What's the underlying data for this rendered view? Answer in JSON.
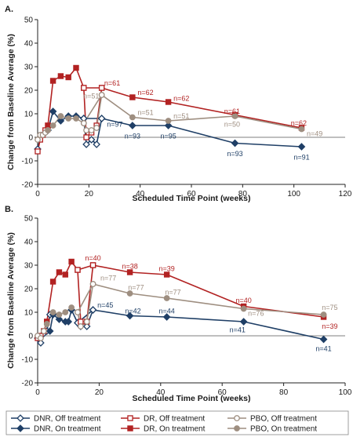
{
  "chart_data": [
    {
      "type": "line",
      "panel_label": "A.",
      "xlabel": "Scheduled Time Point (weeks)",
      "ylabel": "Change from Baseline Average (%)",
      "xlim": [
        0,
        120
      ],
      "ylim": [
        -20,
        50
      ],
      "x_ticks": [
        0,
        20,
        40,
        60,
        80,
        100,
        120
      ],
      "y_ticks": [
        -20,
        -10,
        0,
        10,
        20,
        30,
        40,
        50
      ],
      "series": [
        {
          "key": "dnr_off",
          "color": "#1f3f66",
          "marker": "diamond",
          "filled": false,
          "dashed": false,
          "x": [
            0,
            1,
            2,
            3,
            4
          ],
          "y": [
            -5,
            0,
            1,
            2,
            3
          ]
        },
        {
          "key": "dnr_on",
          "color": "#1f3f66",
          "marker": "diamond",
          "filled": true,
          "dashed": false,
          "x": [
            4,
            6,
            9,
            12,
            15,
            18,
            25,
            37,
            51,
            77,
            103
          ],
          "y": [
            3,
            11,
            7,
            9,
            9,
            8,
            8,
            5,
            5,
            -2.5,
            -4
          ]
        },
        {
          "key": "dnr_off_after",
          "color": "#1f3f66",
          "marker": "diamond",
          "filled": false,
          "dashed": false,
          "x": [
            18,
            19,
            21,
            23,
            25
          ],
          "y": [
            8,
            -3,
            -1,
            -3,
            8
          ]
        },
        {
          "key": "dr_off",
          "color": "#b22222",
          "marker": "square",
          "filled": false,
          "dashed": false,
          "x": [
            0,
            1,
            2,
            3,
            4
          ],
          "y": [
            -6,
            -1,
            1,
            3,
            5
          ]
        },
        {
          "key": "dr_on",
          "color": "#b22222",
          "marker": "square",
          "filled": true,
          "dashed": false,
          "x": [
            4,
            6,
            9,
            12,
            15,
            18,
            25,
            37,
            51,
            77,
            103
          ],
          "y": [
            5,
            24,
            26,
            25.5,
            29.5,
            21,
            21,
            17,
            15,
            9.5,
            4
          ]
        },
        {
          "key": "dr_off_after",
          "color": "#b22222",
          "marker": "square",
          "filled": false,
          "dashed": false,
          "x": [
            18,
            19,
            21,
            23,
            25
          ],
          "y": [
            21,
            0,
            2,
            5,
            21
          ]
        },
        {
          "key": "pbo_off",
          "color": "#9e8e80",
          "marker": "circle",
          "filled": false,
          "dashed": false,
          "x": [
            0,
            1,
            2,
            3,
            4
          ],
          "y": [
            -1,
            1,
            1,
            2,
            3
          ]
        },
        {
          "key": "pbo_on",
          "color": "#9e8e80",
          "marker": "circle",
          "filled": true,
          "dashed": false,
          "x": [
            4,
            6,
            9,
            12,
            15,
            18,
            25,
            37,
            51,
            77,
            103
          ],
          "y": [
            3,
            5,
            9,
            8,
            8,
            6,
            18,
            8.5,
            7,
            9,
            3.5
          ]
        },
        {
          "key": "pbo_off_after",
          "color": "#9e8e80",
          "marker": "circle",
          "filled": false,
          "dashed": false,
          "x": [
            18,
            19,
            21,
            23,
            25
          ],
          "y": [
            6,
            3,
            3,
            4,
            18
          ]
        }
      ],
      "annotations": [
        {
          "text": "n=61",
          "x": 26,
          "y": 23,
          "color": "#b22222",
          "anchor": "start"
        },
        {
          "text": "n=62",
          "x": 39,
          "y": 19,
          "color": "#b22222",
          "anchor": "start"
        },
        {
          "text": "n=62",
          "x": 53,
          "y": 16.5,
          "color": "#b22222",
          "anchor": "start"
        },
        {
          "text": "n=61",
          "x": 79,
          "y": 11,
          "color": "#b22222",
          "anchor": "end"
        },
        {
          "text": "n=62",
          "x": 105,
          "y": 6,
          "color": "#b22222",
          "anchor": "end"
        },
        {
          "text": "n=51",
          "x": 24,
          "y": 17.5,
          "color": "#9e8e80",
          "anchor": "end"
        },
        {
          "text": "n=51",
          "x": 39,
          "y": 10.5,
          "color": "#9e8e80",
          "anchor": "start"
        },
        {
          "text": "n=51",
          "x": 53,
          "y": 9,
          "color": "#9e8e80",
          "anchor": "start"
        },
        {
          "text": "n=50",
          "x": 79,
          "y": 5.5,
          "color": "#9e8e80",
          "anchor": "end"
        },
        {
          "text": "n=49",
          "x": 105,
          "y": 1.5,
          "color": "#9e8e80",
          "anchor": "start"
        },
        {
          "text": "n=97",
          "x": 27,
          "y": 5.5,
          "color": "#1f3f66",
          "anchor": "start"
        },
        {
          "text": "n=93",
          "x": 37,
          "y": 0.5,
          "color": "#1f3f66",
          "anchor": "middle"
        },
        {
          "text": "n=95",
          "x": 51,
          "y": 0.5,
          "color": "#1f3f66",
          "anchor": "middle"
        },
        {
          "text": "n=93",
          "x": 77,
          "y": -7,
          "color": "#1f3f66",
          "anchor": "middle"
        },
        {
          "text": "n=91",
          "x": 103,
          "y": -8.5,
          "color": "#1f3f66",
          "anchor": "middle"
        }
      ]
    },
    {
      "type": "line",
      "panel_label": "B.",
      "xlabel": "Scheduled Time Point (weeks)",
      "ylabel": "Change from Baseline Average (%)",
      "xlim": [
        0,
        100
      ],
      "ylim": [
        -20,
        50
      ],
      "x_ticks": [
        0,
        20,
        40,
        60,
        80,
        100
      ],
      "y_ticks": [
        -20,
        -10,
        0,
        10,
        20,
        30,
        40,
        50
      ],
      "series": [
        {
          "key": "dnr_off",
          "color": "#1f3f66",
          "marker": "diamond",
          "filled": false,
          "dashed": false,
          "x": [
            0,
            1,
            2,
            3,
            4
          ],
          "y": [
            -1,
            -3,
            1,
            2,
            9
          ]
        },
        {
          "key": "dnr_on",
          "color": "#1f3f66",
          "marker": "diamond",
          "filled": true,
          "dashed": false,
          "x": [
            4,
            5,
            7,
            9,
            10,
            11,
            13,
            18,
            30,
            42,
            67,
            93
          ],
          "y": [
            2,
            9,
            7,
            6,
            6,
            11,
            5.5,
            11,
            8.5,
            8,
            6,
            -1.5
          ]
        },
        {
          "key": "dnr_off_after",
          "color": "#1f3f66",
          "marker": "diamond",
          "filled": false,
          "dashed": false,
          "x": [
            13,
            14,
            16,
            18
          ],
          "y": [
            5.5,
            4,
            4,
            11
          ]
        },
        {
          "key": "dr_off",
          "color": "#b22222",
          "marker": "square",
          "filled": false,
          "dashed": false,
          "x": [
            0,
            1,
            2,
            3
          ],
          "y": [
            -1,
            0,
            2,
            6
          ]
        },
        {
          "key": "dr_on",
          "color": "#b22222",
          "marker": "square",
          "filled": true,
          "dashed": false,
          "x": [
            3,
            5,
            7,
            9,
            11,
            13,
            18,
            30,
            42,
            67,
            93
          ],
          "y": [
            6,
            23,
            27,
            26,
            31.5,
            28,
            30,
            27,
            26,
            12.5,
            8
          ]
        },
        {
          "key": "dr_off_after",
          "color": "#b22222",
          "marker": "square",
          "filled": false,
          "dashed": false,
          "x": [
            13,
            14,
            16,
            18
          ],
          "y": [
            28,
            6,
            6,
            30
          ]
        },
        {
          "key": "pbo_off",
          "color": "#9e8e80",
          "marker": "circle",
          "filled": false,
          "dashed": false,
          "x": [
            0,
            1,
            2,
            3
          ],
          "y": [
            0,
            -1,
            2,
            5
          ]
        },
        {
          "key": "pbo_on",
          "color": "#9e8e80",
          "marker": "circle",
          "filled": true,
          "dashed": false,
          "x": [
            3,
            5,
            7,
            9,
            11,
            13,
            18,
            30,
            42,
            67,
            93
          ],
          "y": [
            5,
            10,
            9,
            10,
            12,
            10,
            22,
            18,
            16,
            11.5,
            9
          ]
        },
        {
          "key": "pbo_off_after",
          "color": "#9e8e80",
          "marker": "circle",
          "filled": false,
          "dashed": false,
          "x": [
            13,
            14,
            16,
            18
          ],
          "y": [
            10,
            4,
            6,
            22
          ]
        }
      ],
      "annotations": [
        {
          "text": "n=40",
          "x": 18,
          "y": 33,
          "color": "#b22222",
          "anchor": "middle"
        },
        {
          "text": "n=38",
          "x": 30,
          "y": 29.5,
          "color": "#b22222",
          "anchor": "middle"
        },
        {
          "text": "n=39",
          "x": 42,
          "y": 28.5,
          "color": "#b22222",
          "anchor": "middle"
        },
        {
          "text": "n=40",
          "x": 67,
          "y": 15,
          "color": "#b22222",
          "anchor": "middle"
        },
        {
          "text": "n=39",
          "x": 95,
          "y": 4,
          "color": "#b22222",
          "anchor": "middle"
        },
        {
          "text": "n=77",
          "x": 23,
          "y": 24.5,
          "color": "#9e8e80",
          "anchor": "middle"
        },
        {
          "text": "n=77",
          "x": 32,
          "y": 20.5,
          "color": "#9e8e80",
          "anchor": "middle"
        },
        {
          "text": "n=77",
          "x": 44,
          "y": 18.5,
          "color": "#9e8e80",
          "anchor": "middle"
        },
        {
          "text": "n=76",
          "x": 71,
          "y": 9.5,
          "color": "#9e8e80",
          "anchor": "middle"
        },
        {
          "text": "n=75",
          "x": 95,
          "y": 12,
          "color": "#9e8e80",
          "anchor": "middle"
        },
        {
          "text": "n=45",
          "x": 22,
          "y": 13,
          "color": "#1f3f66",
          "anchor": "middle"
        },
        {
          "text": "n=42",
          "x": 31,
          "y": 10.5,
          "color": "#1f3f66",
          "anchor": "middle"
        },
        {
          "text": "n=44",
          "x": 42,
          "y": 10.5,
          "color": "#1f3f66",
          "anchor": "middle"
        },
        {
          "text": "n=41",
          "x": 65,
          "y": 2.5,
          "color": "#1f3f66",
          "anchor": "middle"
        },
        {
          "text": "n=41",
          "x": 93,
          "y": -5.5,
          "color": "#1f3f66",
          "anchor": "middle"
        }
      ]
    }
  ],
  "legend": {
    "placement": "bottom",
    "entries": [
      {
        "label": "DNR, Off treatment",
        "color": "#1f3f66",
        "marker": "diamond",
        "filled": false
      },
      {
        "label": "DR, Off treatment",
        "color": "#b22222",
        "marker": "square",
        "filled": false
      },
      {
        "label": "PBO, Off treatment",
        "color": "#9e8e80",
        "marker": "circle",
        "filled": false
      },
      {
        "label": "DNR, On treatment",
        "color": "#1f3f66",
        "marker": "diamond",
        "filled": true
      },
      {
        "label": "DR, On treatment",
        "color": "#b22222",
        "marker": "square",
        "filled": true
      },
      {
        "label": "PBO, On treatment",
        "color": "#9e8e80",
        "marker": "circle",
        "filled": true
      }
    ]
  }
}
